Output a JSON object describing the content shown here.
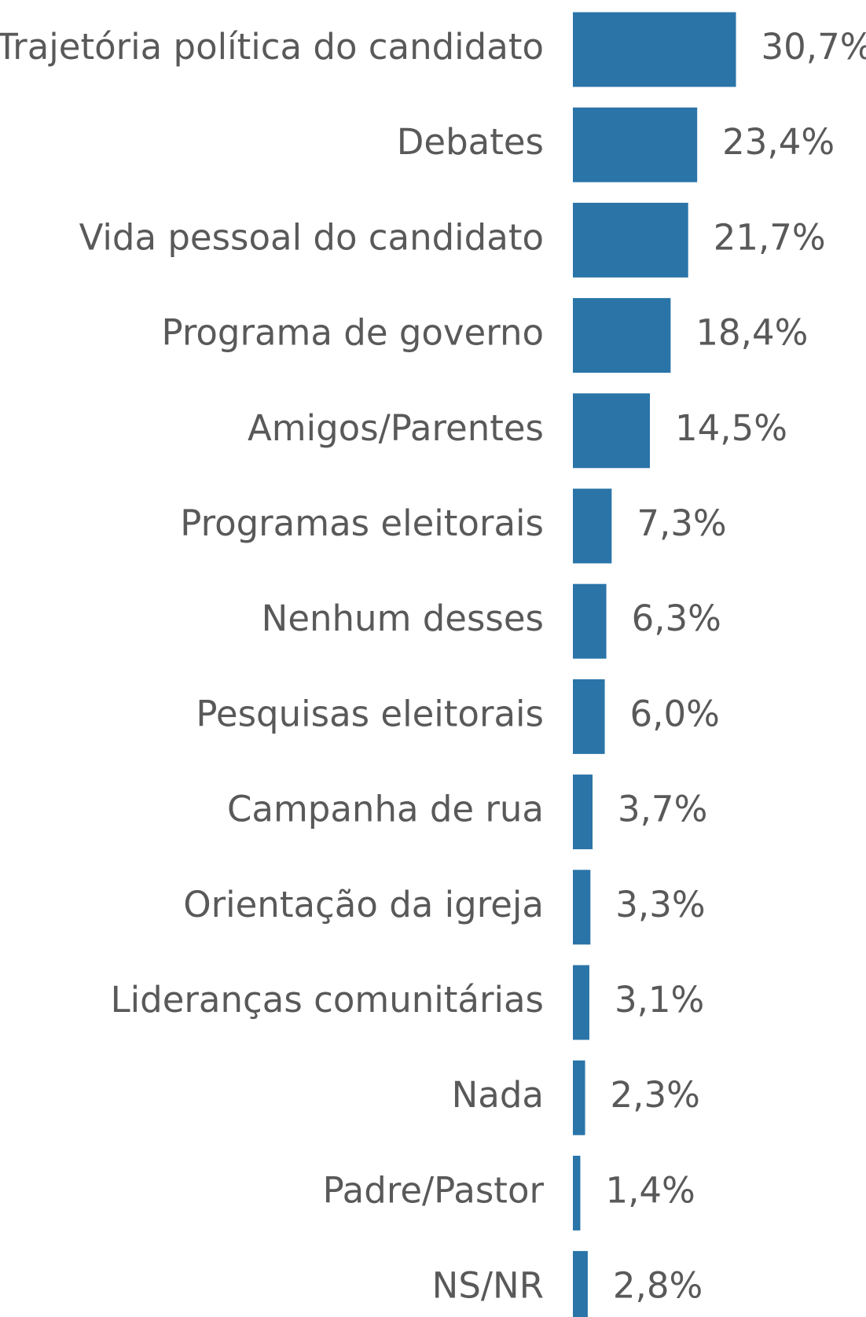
{
  "chart_data": {
    "type": "barh",
    "categories": [
      "Trajetória política do candidato",
      "Debates",
      "Vida pessoal do candidato",
      "Programa de governo",
      "Amigos/Parentes",
      "Programas eleitorais",
      "Nenhum desses",
      "Pesquisas eleitorais",
      "Campanha de rua",
      "Orientação da igreja",
      "Lideranças comunitárias",
      "Nada",
      "Padre/Pastor",
      "NS/NR"
    ],
    "values": [
      30.7,
      23.4,
      21.7,
      18.4,
      14.5,
      7.3,
      6.3,
      6.0,
      3.7,
      3.3,
      3.1,
      2.3,
      1.4,
      2.8
    ],
    "value_labels": [
      "30,7%",
      "23,4%",
      "21,7%",
      "18,4%",
      "14,5%",
      "7,3%",
      "6,3%",
      "6,0%",
      "3,7%",
      "3,3%",
      "3,1%",
      "2,3%",
      "1,4%",
      "2,8%"
    ],
    "color": "#2a74a8"
  }
}
